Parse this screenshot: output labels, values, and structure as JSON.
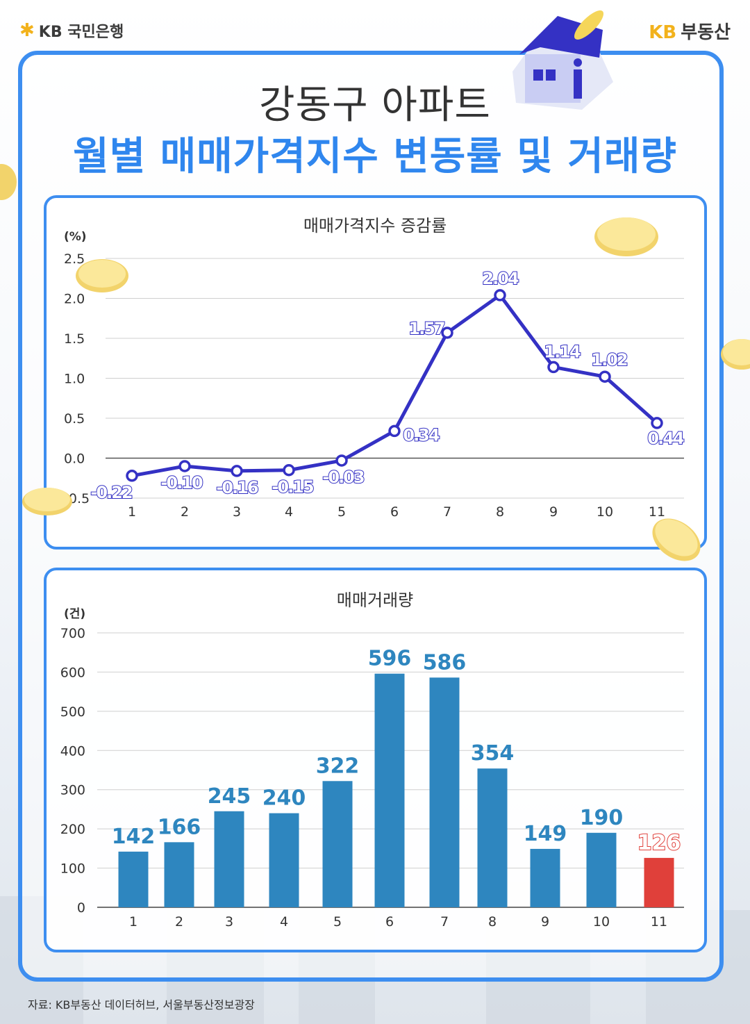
{
  "brand": {
    "left_label": "KB 국민은행",
    "right_kb": "KB",
    "right_label": "부동산"
  },
  "title": {
    "line1": "강동구 아파트",
    "line2": "월별 매매가격지수 변동률 및 거래량"
  },
  "source": "자료: KB부동산 데이터허브, 서울부동산정보광장",
  "colors": {
    "frame": "#3d8ef0",
    "title_accent": "#2f86ee",
    "line": "#3431c4",
    "bar": "#2e86bf",
    "bar_highlight": "#e0403a",
    "bar_label": "#2e86bf"
  },
  "chart_data": [
    {
      "type": "line",
      "title": "매매가격지수 증감률",
      "ylabel": "(%)",
      "xlabel": "",
      "categories": [
        "1",
        "2",
        "3",
        "4",
        "5",
        "6",
        "7",
        "8",
        "9",
        "10",
        "11"
      ],
      "values": [
        -0.22,
        -0.1,
        -0.16,
        -0.15,
        -0.03,
        0.34,
        1.57,
        2.04,
        1.14,
        1.02,
        0.44
      ],
      "data_labels": [
        "-0.22",
        "-0.10",
        "-0.16",
        "-0.15",
        "-0.03",
        "0.34",
        "1.57",
        "2.04",
        "1.14",
        "1.02",
        "0.44"
      ],
      "ylim": [
        -0.5,
        2.5
      ],
      "yticks": [
        "2.5",
        "2.0",
        "1.5",
        "1.0",
        "0.5",
        "0.0",
        "-0.5"
      ],
      "ytick_values": [
        2.5,
        2.0,
        1.5,
        1.0,
        0.5,
        0.0,
        -0.5
      ],
      "grid": true,
      "legend": "none"
    },
    {
      "type": "bar",
      "title": "매매거래량",
      "ylabel": "(건)",
      "xlabel": "",
      "categories": [
        "1",
        "2",
        "3",
        "4",
        "5",
        "6",
        "7",
        "8",
        "9",
        "10",
        "11"
      ],
      "values": [
        142,
        166,
        245,
        240,
        322,
        596,
        586,
        354,
        149,
        190,
        126
      ],
      "ylim": [
        0,
        700
      ],
      "yticks": [
        "700",
        "600",
        "500",
        "400",
        "300",
        "200",
        "100",
        "0"
      ],
      "ytick_values": [
        700,
        600,
        500,
        400,
        300,
        200,
        100,
        0
      ],
      "highlight_index": 10,
      "grid": true,
      "legend": "none"
    }
  ]
}
